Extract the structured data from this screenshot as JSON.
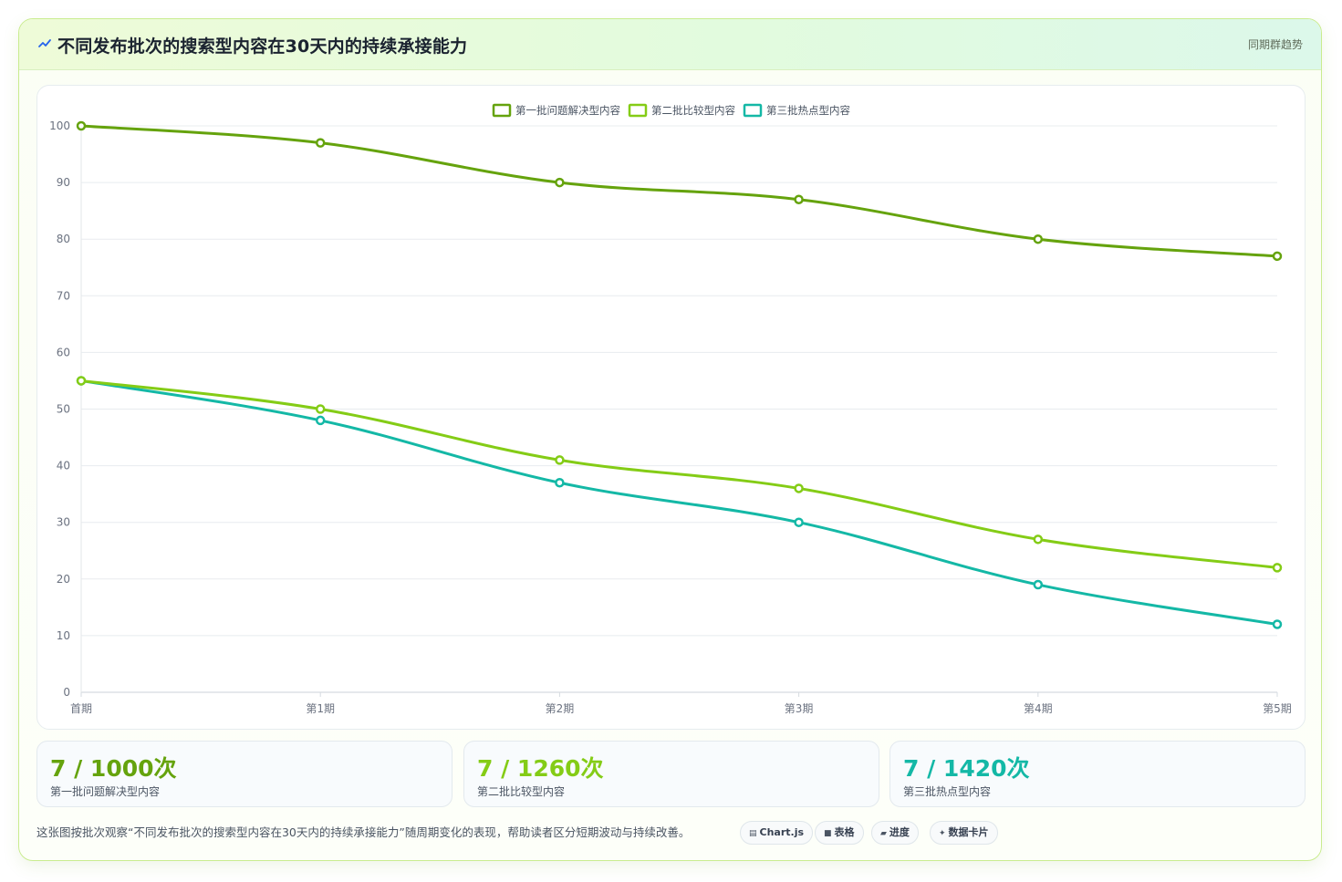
{
  "header": {
    "icon": "chart-line-icon",
    "title": "不同发布批次的搜索型内容在30天内的持续承接能力",
    "tag": "同期群趋势"
  },
  "chart_data": {
    "type": "line",
    "title": "不同发布批次的搜索型内容在30天内的持续承接能力",
    "categories": [
      "首期",
      "第1期",
      "第2期",
      "第3期",
      "第4期",
      "第5期"
    ],
    "ylim": [
      0,
      100
    ],
    "yticks": [
      0,
      10,
      20,
      30,
      40,
      50,
      60,
      70,
      80,
      90,
      100
    ],
    "grid": true,
    "legend_position": "top-center",
    "series": [
      {
        "name": "第一批问题解决型内容",
        "color": "#65a30d",
        "values": [
          100,
          97,
          90,
          87,
          80,
          77
        ]
      },
      {
        "name": "第二批比较型内容",
        "color": "#84cc16",
        "values": [
          55,
          50,
          41,
          36,
          27,
          22
        ]
      },
      {
        "name": "第三批热点型内容",
        "color": "#14b8a6",
        "values": [
          55,
          48,
          37,
          30,
          19,
          12
        ]
      }
    ]
  },
  "stats": [
    {
      "value": "7 / 1000次",
      "label": "第一批问题解决型内容",
      "color": "#65a30d"
    },
    {
      "value": "7 / 1260次",
      "label": "第二批比较型内容",
      "color": "#84cc16"
    },
    {
      "value": "7 / 1420次",
      "label": "第三批热点型内容",
      "color": "#14b8a6"
    }
  ],
  "footer": {
    "description": "这张图按批次观察“不同发布批次的搜索型内容在30天内的持续承接能力”随周期变化的表现，帮助读者区分短期波动与持续改善。",
    "chips": [
      {
        "label": "Chart.js",
        "icon": "chart-icon",
        "glyph": "▤"
      },
      {
        "label": "表格",
        "icon": "table-icon",
        "glyph": "■"
      },
      {
        "label": "进度",
        "icon": "progress-icon",
        "glyph": "▰"
      },
      {
        "label": "数据卡片",
        "icon": "card-icon",
        "glyph": "✦"
      }
    ]
  }
}
